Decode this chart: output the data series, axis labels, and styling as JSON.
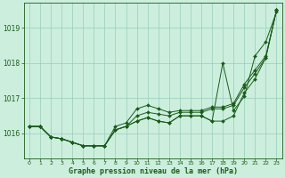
{
  "title": "Graphe pression niveau de la mer (hPa)",
  "background_color": "#cceedd",
  "grid_color": "#99ccbb",
  "line_color": "#1a5c1a",
  "xlim": [
    -0.5,
    23.5
  ],
  "ylim": [
    1015.3,
    1019.7
  ],
  "xticks": [
    0,
    1,
    2,
    3,
    4,
    5,
    6,
    7,
    8,
    9,
    10,
    11,
    12,
    13,
    14,
    15,
    16,
    17,
    18,
    19,
    20,
    21,
    22,
    23
  ],
  "yticks": [
    1016,
    1017,
    1018,
    1019
  ],
  "series1_x": [
    0,
    1,
    2,
    3,
    4,
    5,
    6,
    7,
    8,
    9,
    10,
    11,
    12,
    13,
    14,
    15,
    16,
    17,
    18,
    19,
    20,
    21,
    22,
    23
  ],
  "series1": [
    1016.2,
    1016.2,
    1015.9,
    1015.85,
    1015.75,
    1015.65,
    1015.65,
    1015.65,
    1016.1,
    1016.2,
    1016.35,
    1016.45,
    1016.35,
    1016.3,
    1016.5,
    1016.5,
    1016.5,
    1016.35,
    1016.35,
    1016.5,
    1017.15,
    1017.55,
    1018.15,
    1019.5
  ],
  "series2_x": [
    0,
    1,
    2,
    3,
    4,
    5,
    6,
    7,
    8,
    9,
    10,
    11,
    12,
    13,
    14,
    15,
    16,
    17,
    18,
    19,
    20,
    21,
    22,
    23
  ],
  "series2": [
    1016.2,
    1016.2,
    1015.9,
    1015.85,
    1015.75,
    1015.65,
    1015.65,
    1015.65,
    1016.1,
    1016.2,
    1016.5,
    1016.6,
    1016.55,
    1016.5,
    1016.6,
    1016.6,
    1016.6,
    1016.7,
    1016.7,
    1016.8,
    1017.3,
    1017.7,
    1018.15,
    1019.5
  ],
  "series3_x": [
    0,
    1,
    2,
    3,
    4,
    5,
    6,
    7,
    8,
    9,
    10,
    11,
    12,
    13,
    14,
    15,
    16,
    17,
    18,
    19,
    20,
    21,
    22,
    23
  ],
  "series3": [
    1016.2,
    1016.2,
    1015.9,
    1015.85,
    1015.75,
    1015.65,
    1015.65,
    1015.65,
    1016.2,
    1016.3,
    1016.7,
    1016.8,
    1016.7,
    1016.6,
    1016.65,
    1016.65,
    1016.65,
    1016.75,
    1016.75,
    1016.85,
    1017.4,
    1017.8,
    1018.2,
    1019.5
  ],
  "series4_x": [
    0,
    1,
    2,
    3,
    4,
    5,
    6,
    7,
    8,
    9,
    10,
    11,
    12,
    13,
    14,
    15,
    16,
    17,
    18,
    19,
    20,
    21,
    22,
    23
  ],
  "series4": [
    1016.2,
    1016.2,
    1015.9,
    1015.85,
    1015.75,
    1015.65,
    1015.65,
    1015.65,
    1016.1,
    1016.2,
    1016.35,
    1016.45,
    1016.35,
    1016.3,
    1016.5,
    1016.5,
    1016.5,
    1016.35,
    1018.0,
    1016.65,
    1017.05,
    1018.2,
    1018.6,
    1019.45
  ]
}
